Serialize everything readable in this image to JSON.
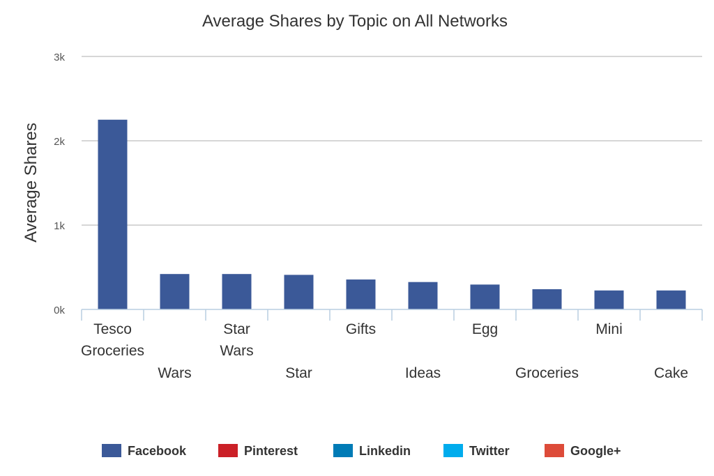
{
  "chart_data": {
    "type": "bar",
    "title": "Average Shares by Topic on All Networks",
    "ylabel": "Average Shares",
    "xlabel": "",
    "ylim": [
      0,
      3000
    ],
    "yticks": [
      {
        "value": 0,
        "label": "0k"
      },
      {
        "value": 1000,
        "label": "1k"
      },
      {
        "value": 2000,
        "label": "2k"
      },
      {
        "value": 3000,
        "label": "3k"
      }
    ],
    "grid": true,
    "legend_position": "bottom",
    "categories": [
      {
        "lines": [
          "Tesco",
          "Groceries"
        ],
        "row": "upper"
      },
      {
        "lines": [
          "Wars"
        ],
        "row": "lower"
      },
      {
        "lines": [
          "Star",
          "Wars"
        ],
        "row": "upper"
      },
      {
        "lines": [
          "Star"
        ],
        "row": "lower"
      },
      {
        "lines": [
          "Gifts"
        ],
        "row": "upper"
      },
      {
        "lines": [
          "Ideas"
        ],
        "row": "lower"
      },
      {
        "lines": [
          "Egg"
        ],
        "row": "upper"
      },
      {
        "lines": [
          "Groceries"
        ],
        "row": "lower"
      },
      {
        "lines": [
          "Mini"
        ],
        "row": "upper"
      },
      {
        "lines": [
          "Cake"
        ],
        "row": "lower"
      }
    ],
    "series": [
      {
        "name": "Facebook",
        "color": "#3b5998",
        "values": [
          2250,
          420,
          420,
          410,
          355,
          325,
          295,
          240,
          225,
          225
        ]
      },
      {
        "name": "Pinterest",
        "color": "#cb2027",
        "values": [
          0,
          0,
          0,
          0,
          0,
          0,
          0,
          0,
          0,
          0
        ]
      },
      {
        "name": "Linkedin",
        "color": "#007bb6",
        "values": [
          0,
          0,
          0,
          0,
          0,
          0,
          0,
          0,
          0,
          0
        ]
      },
      {
        "name": "Twitter",
        "color": "#00aced",
        "values": [
          0,
          0,
          0,
          0,
          0,
          0,
          0,
          0,
          0,
          0
        ]
      },
      {
        "name": "Google+",
        "color": "#dd4b39",
        "values": [
          0,
          0,
          0,
          0,
          0,
          0,
          0,
          0,
          0,
          0
        ]
      }
    ]
  }
}
